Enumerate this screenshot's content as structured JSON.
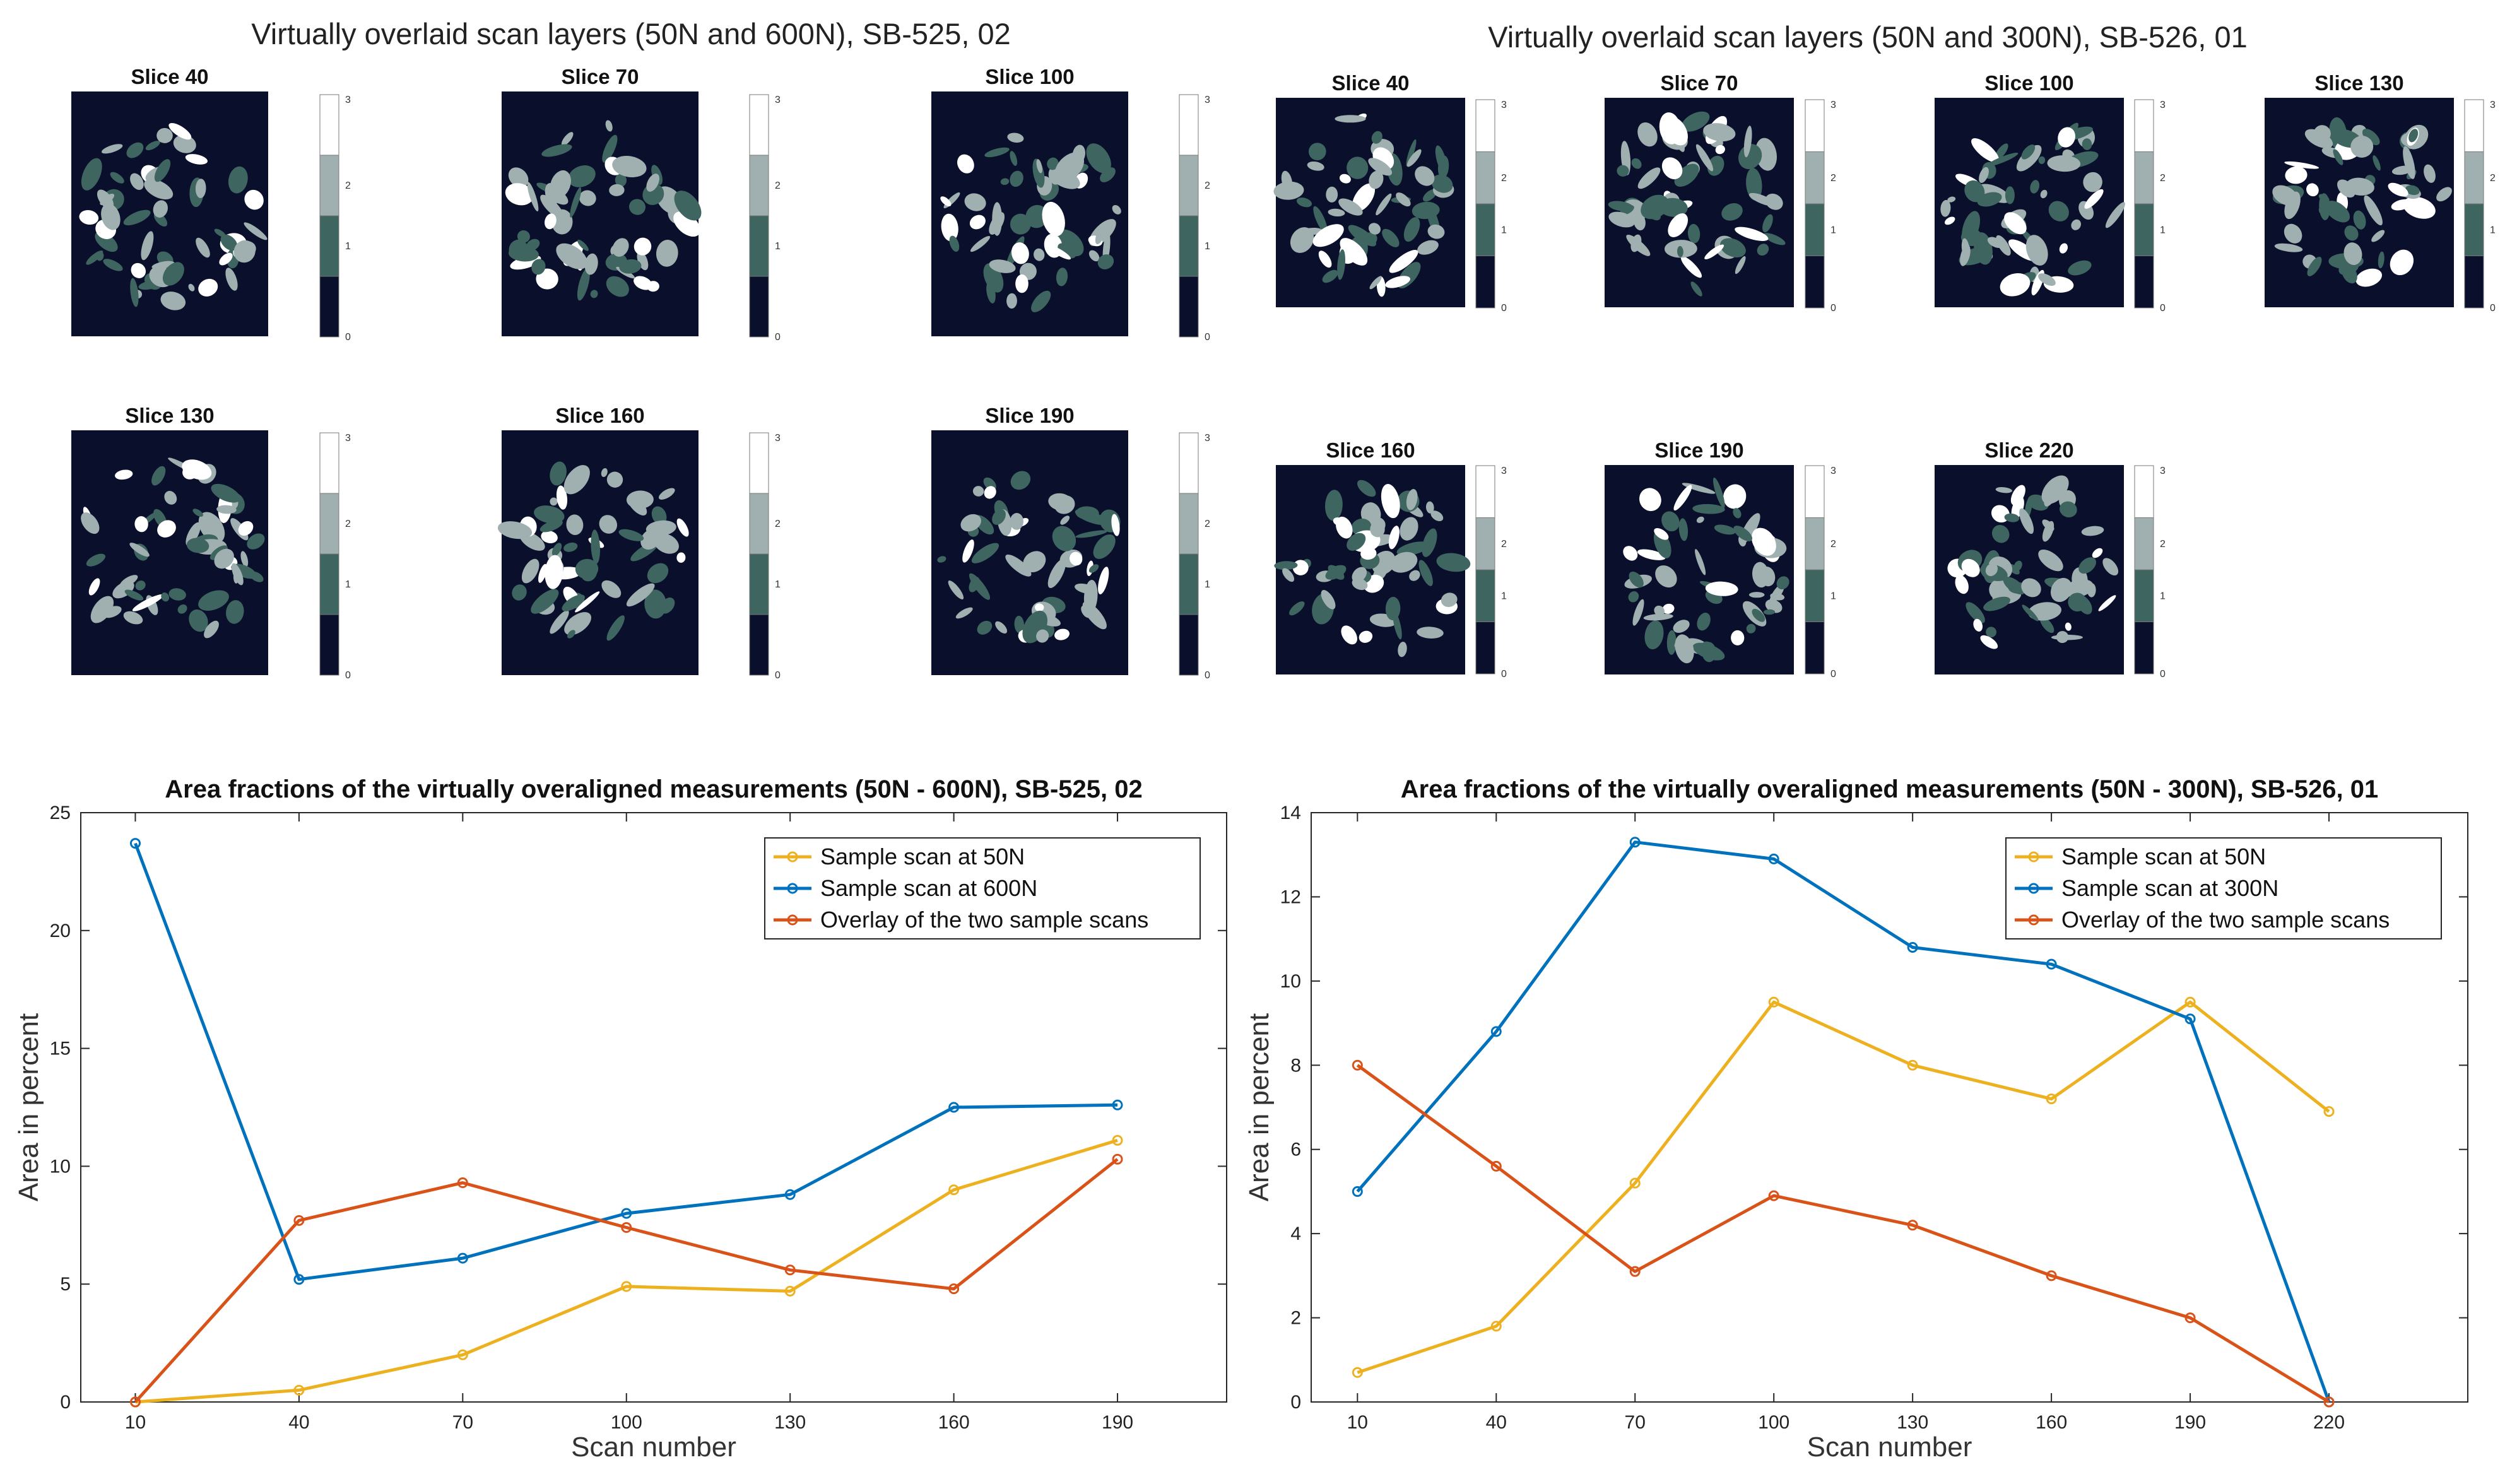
{
  "colors": {
    "background": "#0a0f2c",
    "level1": "#3f6560",
    "level2": "#a0b0b0",
    "level3": "#ffffff",
    "yellow": "#edb120",
    "blue": "#0072bd",
    "orange": "#d95319"
  },
  "overlays": [
    {
      "title": "Virtually overlaid scan layers (50N and 600N), SB-525, 02",
      "slices": [
        {
          "label": "Slice 40"
        },
        {
          "label": "Slice 70"
        },
        {
          "label": "Slice 100"
        },
        {
          "label": "Slice 130"
        },
        {
          "label": "Slice 160"
        },
        {
          "label": "Slice 190"
        }
      ]
    },
    {
      "title": "Virtually overlaid scan layers (50N and 300N), SB-526, 01",
      "slices": [
        {
          "label": "Slice 40"
        },
        {
          "label": "Slice 70"
        },
        {
          "label": "Slice 100"
        },
        {
          "label": "Slice 130"
        },
        {
          "label": "Slice 160"
        },
        {
          "label": "Slice 190"
        },
        {
          "label": "Slice 220"
        }
      ]
    }
  ],
  "colorbar": {
    "ticks": [
      "3",
      "2",
      "1",
      "0"
    ]
  },
  "chart_data": [
    {
      "type": "line",
      "title": "Area fractions of the virtually overaligned measurements (50N - 600N), SB-525, 02",
      "xlabel": "Scan number",
      "ylabel": "Area in percent",
      "x": [
        10,
        40,
        70,
        100,
        130,
        160,
        190
      ],
      "xlim": [
        0,
        210
      ],
      "ylim": [
        0,
        25
      ],
      "xticks": [
        10,
        40,
        70,
        100,
        130,
        160,
        190
      ],
      "yticks": [
        0,
        5,
        10,
        15,
        20,
        25
      ],
      "legend": "top-right",
      "series": [
        {
          "name": "Sample scan at 50N",
          "color": "#edb120",
          "values": [
            0,
            0.5,
            2.0,
            4.9,
            4.7,
            9.0,
            11.1
          ]
        },
        {
          "name": "Sample scan at 600N",
          "color": "#0072bd",
          "values": [
            23.7,
            5.2,
            6.1,
            8.0,
            8.8,
            12.5,
            12.6
          ]
        },
        {
          "name": "Overlay of the two sample scans",
          "color": "#d95319",
          "values": [
            0,
            7.7,
            9.3,
            7.4,
            5.6,
            4.8,
            10.3
          ]
        }
      ]
    },
    {
      "type": "line",
      "title": "Area fractions of the virtually overaligned measurements (50N - 300N), SB-526, 01",
      "xlabel": "Scan number",
      "ylabel": "Area in percent",
      "x": [
        10,
        40,
        70,
        100,
        130,
        160,
        190,
        220
      ],
      "xlim": [
        0,
        250
      ],
      "ylim": [
        0,
        14
      ],
      "xticks": [
        10,
        40,
        70,
        100,
        130,
        160,
        190,
        220
      ],
      "yticks": [
        0,
        2,
        4,
        6,
        8,
        10,
        12,
        14
      ],
      "legend": "top-right",
      "series": [
        {
          "name": "Sample scan at 50N",
          "color": "#edb120",
          "values": [
            0.7,
            1.8,
            5.2,
            9.5,
            8.0,
            7.2,
            9.5,
            6.9
          ]
        },
        {
          "name": "Sample scan at 300N",
          "color": "#0072bd",
          "values": [
            5.0,
            8.8,
            13.3,
            12.9,
            10.8,
            10.4,
            9.1,
            0
          ]
        },
        {
          "name": "Overlay of the two sample scans",
          "color": "#d95319",
          "values": [
            8.0,
            5.6,
            3.1,
            4.9,
            4.2,
            3.0,
            2.0,
            0
          ]
        }
      ]
    }
  ]
}
